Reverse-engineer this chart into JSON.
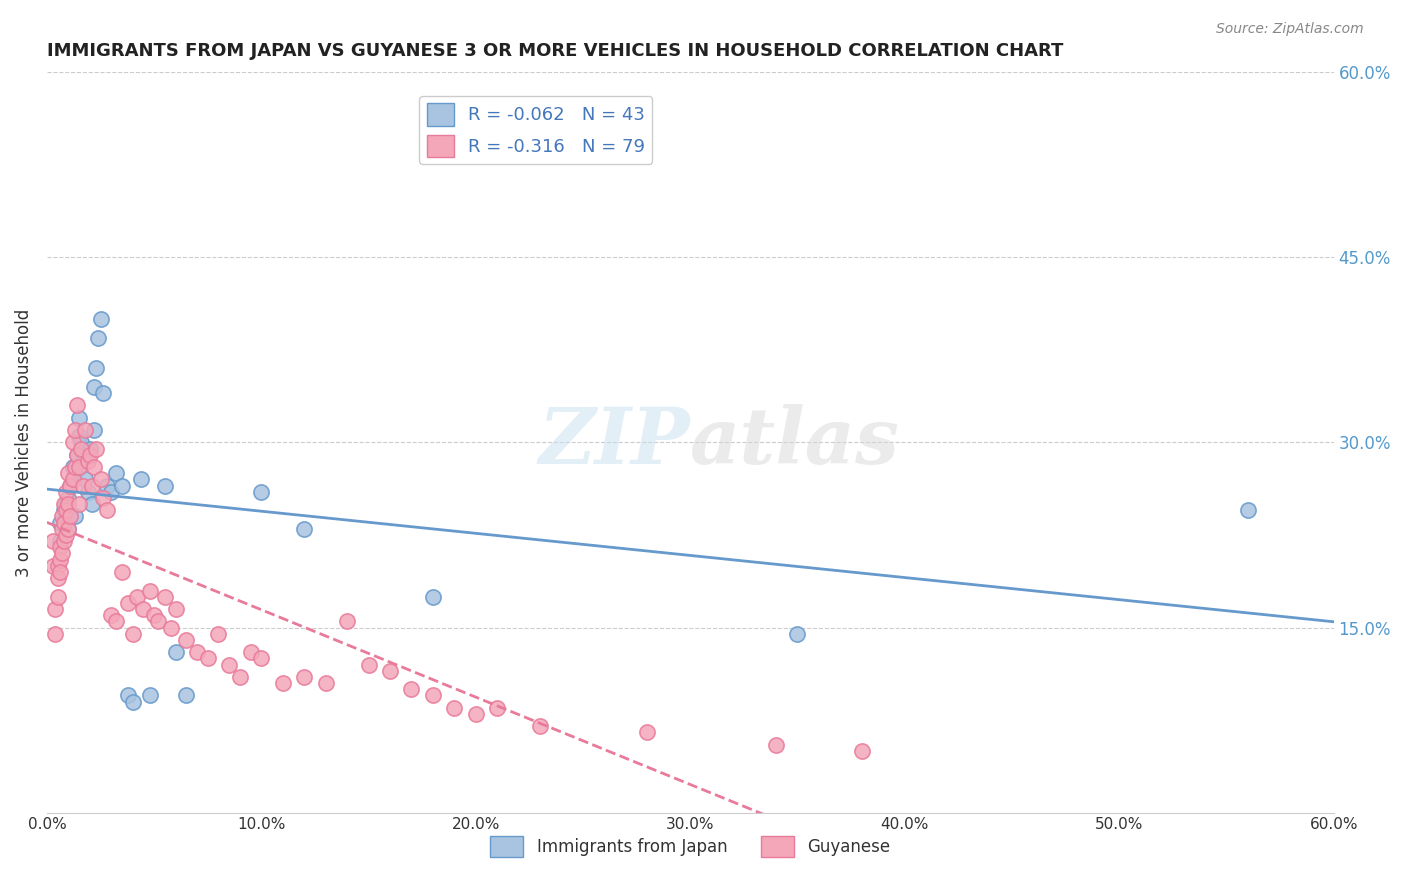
{
  "title": "IMMIGRANTS FROM JAPAN VS GUYANESE 3 OR MORE VEHICLES IN HOUSEHOLD CORRELATION CHART",
  "source": "Source: ZipAtlas.com",
  "ylabel_left": "3 or more Vehicles in Household",
  "xlim": [
    0.0,
    0.6
  ],
  "ylim": [
    0.0,
    0.6
  ],
  "xtick_labels": [
    "0.0%",
    "10.0%",
    "20.0%",
    "30.0%",
    "40.0%",
    "50.0%",
    "60.0%"
  ],
  "xtick_vals": [
    0.0,
    0.1,
    0.2,
    0.3,
    0.4,
    0.5,
    0.6
  ],
  "ytick_labels_right": [
    "15.0%",
    "30.0%",
    "45.0%",
    "60.0%"
  ],
  "ytick_vals_right": [
    0.15,
    0.3,
    0.45,
    0.6
  ],
  "legend_label1": "Immigrants from Japan",
  "legend_label2": "Guyanese",
  "R1": "-0.062",
  "N1": "43",
  "R2": "-0.316",
  "N2": "79",
  "color_japan": "#a8c4e0",
  "color_guyanese": "#f4a7b9",
  "color_japan_line": "#6699cc",
  "color_guyanese_line": "#e87a9a",
  "color_axis_right": "#5599cc",
  "color_text_blue": "#4477bb",
  "watermark_zip": "ZIP",
  "watermark_atlas": "atlas",
  "japan_x": [
    0.006,
    0.006,
    0.008,
    0.009,
    0.01,
    0.01,
    0.01,
    0.011,
    0.012,
    0.012,
    0.013,
    0.013,
    0.014,
    0.015,
    0.015,
    0.016,
    0.017,
    0.018,
    0.019,
    0.02,
    0.021,
    0.022,
    0.022,
    0.023,
    0.024,
    0.025,
    0.026,
    0.028,
    0.03,
    0.032,
    0.035,
    0.038,
    0.04,
    0.044,
    0.048,
    0.055,
    0.06,
    0.065,
    0.1,
    0.12,
    0.18,
    0.35,
    0.56
  ],
  "japan_y": [
    0.22,
    0.235,
    0.245,
    0.25,
    0.23,
    0.24,
    0.255,
    0.265,
    0.27,
    0.28,
    0.24,
    0.275,
    0.29,
    0.305,
    0.32,
    0.3,
    0.285,
    0.27,
    0.26,
    0.295,
    0.25,
    0.31,
    0.345,
    0.36,
    0.385,
    0.4,
    0.34,
    0.265,
    0.26,
    0.275,
    0.265,
    0.095,
    0.09,
    0.27,
    0.095,
    0.265,
    0.13,
    0.095,
    0.26,
    0.23,
    0.175,
    0.145,
    0.245
  ],
  "guyanese_x": [
    0.003,
    0.003,
    0.004,
    0.004,
    0.005,
    0.005,
    0.005,
    0.006,
    0.006,
    0.006,
    0.007,
    0.007,
    0.007,
    0.008,
    0.008,
    0.008,
    0.009,
    0.009,
    0.009,
    0.01,
    0.01,
    0.01,
    0.011,
    0.011,
    0.012,
    0.012,
    0.013,
    0.013,
    0.014,
    0.014,
    0.015,
    0.015,
    0.016,
    0.017,
    0.018,
    0.019,
    0.02,
    0.021,
    0.022,
    0.023,
    0.025,
    0.026,
    0.028,
    0.03,
    0.032,
    0.035,
    0.038,
    0.04,
    0.042,
    0.045,
    0.048,
    0.05,
    0.052,
    0.055,
    0.058,
    0.06,
    0.065,
    0.07,
    0.075,
    0.08,
    0.085,
    0.09,
    0.095,
    0.1,
    0.11,
    0.12,
    0.13,
    0.14,
    0.15,
    0.16,
    0.17,
    0.18,
    0.19,
    0.2,
    0.21,
    0.23,
    0.28,
    0.34,
    0.38
  ],
  "guyanese_y": [
    0.22,
    0.2,
    0.165,
    0.145,
    0.2,
    0.19,
    0.175,
    0.215,
    0.205,
    0.195,
    0.24,
    0.23,
    0.21,
    0.25,
    0.235,
    0.22,
    0.26,
    0.245,
    0.225,
    0.275,
    0.25,
    0.23,
    0.265,
    0.24,
    0.3,
    0.27,
    0.31,
    0.28,
    0.33,
    0.29,
    0.28,
    0.25,
    0.295,
    0.265,
    0.31,
    0.285,
    0.29,
    0.265,
    0.28,
    0.295,
    0.27,
    0.255,
    0.245,
    0.16,
    0.155,
    0.195,
    0.17,
    0.145,
    0.175,
    0.165,
    0.18,
    0.16,
    0.155,
    0.175,
    0.15,
    0.165,
    0.14,
    0.13,
    0.125,
    0.145,
    0.12,
    0.11,
    0.13,
    0.125,
    0.105,
    0.11,
    0.105,
    0.155,
    0.12,
    0.115,
    0.1,
    0.095,
    0.085,
    0.08,
    0.085,
    0.07,
    0.065,
    0.055,
    0.05
  ],
  "background_color": "#ffffff",
  "grid_color": "#cccccc"
}
